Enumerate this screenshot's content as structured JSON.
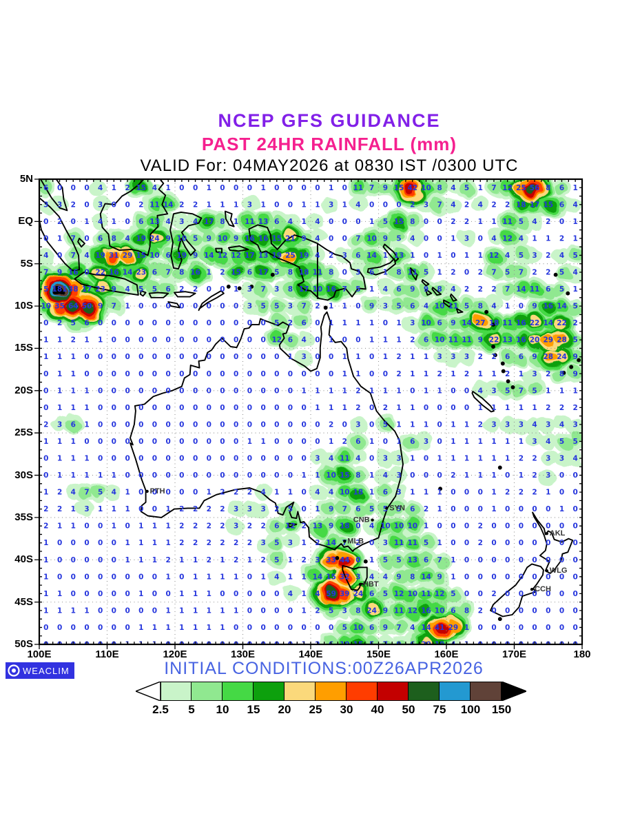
{
  "header": {
    "line1": "NCEP GFS GUIDANCE",
    "line2": "PAST 24HR RAINFALL (mm)",
    "line3": "VALID For: 04MAY2026 at 0830 IST /0300 UTC",
    "line1_color": "#8220e8",
    "line2_color": "#f5208f"
  },
  "footer": {
    "initial_conditions": "INITIAL CONDITIONS:00Z26APR2026",
    "initial_conditions_color": "#4763e2",
    "logo_text": "WEACLIM",
    "logo_bg": "#3232e0"
  },
  "map": {
    "lon_min": 100,
    "lon_max": 180,
    "lat_min": -50,
    "lat_max": 5,
    "lon_labels": [
      "100E",
      "110E",
      "120E",
      "130E",
      "140E",
      "150E",
      "160E",
      "170E",
      "180"
    ],
    "lon_ticks": [
      100,
      110,
      120,
      130,
      140,
      150,
      160,
      170,
      180
    ],
    "lat_labels": [
      "5N",
      "EQ",
      "5S",
      "10S",
      "15S",
      "20S",
      "25S",
      "30S",
      "35S",
      "40S",
      "45S",
      "50S"
    ],
    "lat_ticks": [
      5,
      0,
      -5,
      -10,
      -15,
      -20,
      -25,
      -30,
      -35,
      -40,
      -45,
      -50
    ],
    "grid_number_color": "#2636dd",
    "city_label_color": "#333333",
    "cities": [
      {
        "name": "PTH",
        "lon": 115.9,
        "lat": -31.9,
        "label_side": "right"
      },
      {
        "name": "SYN",
        "lon": 151.2,
        "lat": -33.9,
        "label_side": "right"
      },
      {
        "name": "CNB",
        "lon": 149.1,
        "lat": -35.3,
        "label_side": "left"
      },
      {
        "name": "MLB",
        "lon": 145.0,
        "lat": -37.8,
        "label_side": "right"
      },
      {
        "name": "HBT",
        "lon": 147.3,
        "lat": -42.9,
        "label_side": "right"
      },
      {
        "name": "AKL",
        "lon": 174.8,
        "lat": -36.9,
        "label_side": "right"
      },
      {
        "name": "WLG",
        "lon": 174.8,
        "lat": -41.3,
        "label_side": "right"
      },
      {
        "name": "CCH",
        "lon": 172.6,
        "lat": -43.5,
        "label_side": "right"
      }
    ],
    "values_grid": {
      "lon_start": 101,
      "lat_start": 4,
      "step_deg": 2,
      "rows": [
        "6 0 0 0 4 1 2 15 4 1 0 0 1 0 0 0 1 0 0 0 0 1 0 11 7 9 15 42 10 8 4 5 1 7 12 25 56 8 6 1",
        "3 3 2 0 3 0 0 2 11 14 2 2 1 1 1 3 1 0 0 1 1 3 1 4 0 0 0 2 3 7 4 2 4 2 2 18 17 15 6 4",
        "0 2 0 1 4 1 0 6 13 4 3 4 17 8 1 11 13 6 4 1 4 0 0 0 1 5 15 8 0 0 2 2 1 1 11 5 4 2 0 1",
        "0 1 7 0 6 8 4 19 24 9 10 5 9 10 9 16 16 15 21 9 4 0 0 7 10 9 5 4 0 0 1 3 0 4 12 4 1 1 2 1",
        "4 0 7 4 19 31 29 15 10 6 19 9 14 12 12 17 13 19 25 19 4 2 3 6 14 1 13 1 0 1 0 1 1 12 4 5 3 2 4 5",
        "7 9 16 0 22 16 14 23 6 7 8 16 1 2 15 6 17 5 8 18 11 8 0 3 6 1 8 11 5 1 2 0 2 7 5 7 2 2 5 4",
        "5 181 38 17 23 9 4 5 5 6 2 2 0 0 1 3 7 3 8 17 10 16 7 5 1 4 6 9 9 8 4 2 2 2 7 14 11 6 5 1",
        "10 35 64 50 9 7 1 0 0 0 0 0 0 0 0 3 5 5 3 7 2 1 1 0 9 3 5 6 4 10 11 5 8 4 1 0 9 16 14 5",
        "0 2 5 6 0 0 0 0 0 0 0 0 0 0 0 0 0 5 2 6 0 1 1 1 1 0 1 3 10 6 9 14 27 18 11 16 22 14 22 2",
        "1 1 2 1 1 0 0 0 0 0 0 0 0 0 0 0 0 12 6 4 0 1 0 0 1 1 1 2 6 10 11 11 9 22 13 16 20 29 28 5",
        "1 1 1 0 0 0 0 0 0 0 0 0 0 0 0 0 0 0 1 3 0 0 1 1 0 1 2 1 1 3 3 3 2 2 6 6 9 28 24 9",
        "0 1 1 0 0 0 0 0 0 0 0 0 0 0 0 0 0 0 0 0 0 0 1 1 0 0 2 1 1 2 1 2 1 1 2 1 3 2 8 9",
        "0 1 1 1 0 0 0 0 0 0 0 0 0 0 0 0 0 0 0 1 1 1 1 2 1 1 1 0 1 1 0 0 4 3 5 7 5 1 1 1",
        "0 1 1 1 0 0 0 0 0 0 0 0 0 0 0 0 0 0 0 0 1 1 1 2 0 2 1 1 0 0 0 0 1 1 1 1 1 2 2 2",
        "2 3 6 1 0 0 0 0 0 0 0 0 0 0 0 0 0 0 0 0 0 2 0 3 0 5 1 1 1 0 1 1 2 3 3 3 4 3 4 3",
        "1 1 1 0 0 0 0 0 0 0 0 0 0 0 0 1 1 0 0 0 0 1 2 6 1 0 1 6 3 0 1 1 1 1 1 1 3 4 5 5",
        "0 1 1 1 0 0 0 0 0 0 0 0 0 0 0 0 0 0 0 0 3 4 11 4 0 3 3 1 0 1 1 1 1 1 1 2 2 3 3 4",
        "0 1 1 1 1 1 0 0 0 0 0 0 0 0 0 0 0 0 0 1 1 10 15 8 1 4 3 0 0 0 2 1 1 1 0 1 2 3 0 0",
        "1 2 4 7 5 4 1 0 0 0 0 0 1 2 2 2 4 1 1 0 4 4 10 18 1 6 3 1 1 1 0 0 0 1 2 2 2 1 0 0",
        "2 2 1 3 1 1 1 0 0 1 2 2 2 2 3 3 3 2 5 0 1 9 7 6 5 5 5 6 2 1 0 0 0 1 0 0 0 0 1 0",
        "2 1 1 0 0 1 0 1 1 1 2 2 2 2 3 2 2 6 12 2 13 9 18 0 4 10 10 10 1 0 0 0 2 0 0 0 0 0 0 0",
        "1 0 0 0 0 0 1 1 1 1 2 2 2 2 2 2 3 5 3 1 2 14 7 2 0 3 11 11 5 1 0 0 2 0 0 0 0 0 0 0",
        "1 0 0 0 0 0 1 1 1 2 1 1 2 1 2 1 2 5 1 2 3 33 44 0 1 5 5 13 6 7 1 0 0 0 0 0 0 0 0 0",
        "1 0 0 0 0 0 0 0 0 1 0 1 1 1 1 0 1 4 1 1 14 15 32 3 4 4 9 8 14 9 1 0 0 0 0 0 0 0 0 0",
        "1 1 0 0 0 0 0 1 0 0 1 1 1 0 0 0 0 0 4 1 4 59 39 24 6 5 12 10 11 12 5 0 0 2 0 0 0 0 0 0",
        "1 1 1 1 0 0 0 0 0 1 1 1 1 1 1 0 0 0 0 1 2 5 3 8 24 9 11 12 16 10 6 8 2 0 0 0 0 0 0 0",
        "0 0 0 0 0 0 0 1 1 1 1 1 1 1 0 0 0 0 0 0 0 0 5 10 6 9 7 4 14 41 29 1 0 0 0 0 0 0 0 0",
        "0 0 0 0 0 0 1 1 1 0 0 0 0 0 0 0 0 0 0 1 2 6 10 15 5 7 9 6 20 19 4 1 0 0 0 0 0 0 0 0"
      ]
    }
  },
  "legend": {
    "thresholds": [
      "2.5",
      "5",
      "10",
      "15",
      "20",
      "25",
      "30",
      "40",
      "50",
      "75",
      "100",
      "150"
    ],
    "colors": [
      "#c9f4c9",
      "#90e890",
      "#45d945",
      "#0da00d",
      "#fbd97b",
      "#ff9e00",
      "#ff3d00",
      "#c30000",
      "#1d5f1d",
      "#2399d1",
      "#604238"
    ],
    "under_color": "#ffffff",
    "over_color": "#000000"
  }
}
